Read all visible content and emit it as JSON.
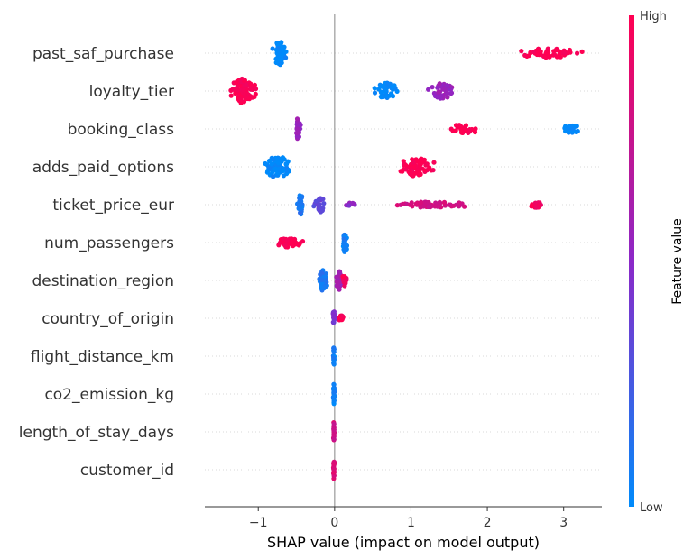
{
  "chart_data": {
    "type": "scatter",
    "subtype": "shap-beeswarm",
    "xlabel": "SHAP value (impact on model output)",
    "xlim": [
      -1.7,
      3.5
    ],
    "x_ticks": [
      -1,
      0,
      1,
      2,
      3
    ],
    "x_tick_labels": [
      "−1",
      "0",
      "1",
      "2",
      "3"
    ],
    "features": [
      "past_saf_purchase",
      "loyalty_tier",
      "booking_class",
      "adds_paid_options",
      "ticket_price_eur",
      "num_passengers",
      "destination_region",
      "country_of_origin",
      "flight_distance_km",
      "co2_emission_kg",
      "length_of_stay_days",
      "customer_id"
    ],
    "clusters": [
      {
        "feature": "past_saf_purchase",
        "center": -0.72,
        "spread": 0.12,
        "height": 0.75,
        "count": 70,
        "color": 0.0
      },
      {
        "feature": "past_saf_purchase",
        "center": 2.8,
        "spread": 0.55,
        "height": 0.3,
        "count": 55,
        "color": 1.0
      },
      {
        "feature": "loyalty_tier",
        "center": -1.2,
        "spread": 0.22,
        "height": 0.8,
        "count": 90,
        "color": 1.0
      },
      {
        "feature": "loyalty_tier",
        "center": 0.68,
        "spread": 0.18,
        "height": 0.55,
        "count": 45,
        "color": 0.0
      },
      {
        "feature": "loyalty_tier",
        "center": 1.4,
        "spread": 0.2,
        "height": 0.5,
        "count": 45,
        "color": 0.55
      },
      {
        "feature": "booking_class",
        "center": -0.48,
        "spread": 0.04,
        "height": 0.7,
        "count": 35,
        "color": 0.55
      },
      {
        "feature": "booking_class",
        "center": 1.7,
        "spread": 0.28,
        "height": 0.3,
        "count": 30,
        "color": 1.0
      },
      {
        "feature": "booking_class",
        "center": 3.1,
        "spread": 0.18,
        "height": 0.25,
        "count": 25,
        "color": 0.0
      },
      {
        "feature": "adds_paid_options",
        "center": -0.75,
        "spread": 0.22,
        "height": 0.75,
        "count": 75,
        "color": 0.0
      },
      {
        "feature": "adds_paid_options",
        "center": 1.05,
        "spread": 0.3,
        "height": 0.6,
        "count": 75,
        "color": 1.0
      },
      {
        "feature": "ticket_price_eur",
        "center": -0.45,
        "spread": 0.05,
        "height": 0.7,
        "count": 30,
        "color": 0.1
      },
      {
        "feature": "ticket_price_eur",
        "center": -0.2,
        "spread": 0.1,
        "height": 0.5,
        "count": 25,
        "color": 0.35
      },
      {
        "feature": "ticket_price_eur",
        "center": 0.2,
        "spread": 0.15,
        "height": 0.12,
        "count": 8,
        "color": 0.5
      },
      {
        "feature": "ticket_price_eur",
        "center": 1.3,
        "spread": 0.7,
        "height": 0.2,
        "count": 60,
        "color": 0.8
      },
      {
        "feature": "ticket_price_eur",
        "center": 2.65,
        "spread": 0.12,
        "height": 0.2,
        "count": 18,
        "color": 0.95
      },
      {
        "feature": "num_passengers",
        "center": -0.6,
        "spread": 0.22,
        "height": 0.3,
        "count": 45,
        "color": 1.0
      },
      {
        "feature": "num_passengers",
        "center": 0.14,
        "spread": 0.04,
        "height": 0.7,
        "count": 45,
        "color": 0.05
      },
      {
        "feature": "destination_region",
        "center": -0.15,
        "spread": 0.06,
        "height": 0.7,
        "count": 45,
        "color": 0.1
      },
      {
        "feature": "destination_region",
        "center": 0.06,
        "spread": 0.05,
        "height": 0.6,
        "count": 35,
        "color": 0.6
      },
      {
        "feature": "destination_region",
        "center": 0.13,
        "spread": 0.04,
        "height": 0.4,
        "count": 15,
        "color": 0.95
      },
      {
        "feature": "country_of_origin",
        "center": -0.01,
        "spread": 0.02,
        "height": 0.5,
        "count": 20,
        "color": 0.45
      },
      {
        "feature": "country_of_origin",
        "center": 0.08,
        "spread": 0.05,
        "height": 0.2,
        "count": 14,
        "color": 1.0
      },
      {
        "feature": "flight_distance_km",
        "center": -0.01,
        "spread": 0.01,
        "height": 0.65,
        "count": 25,
        "color": 0.05
      },
      {
        "feature": "co2_emission_kg",
        "center": -0.01,
        "spread": 0.01,
        "height": 0.65,
        "count": 25,
        "color": 0.05
      },
      {
        "feature": "length_of_stay_days",
        "center": -0.01,
        "spread": 0.01,
        "height": 0.65,
        "count": 25,
        "color": 0.8
      },
      {
        "feature": "customer_id",
        "center": -0.01,
        "spread": 0.01,
        "height": 0.65,
        "count": 25,
        "color": 0.85
      }
    ],
    "colorbar": {
      "label": "Feature value",
      "high_label": "High",
      "low_label": "Low",
      "low_color": "#008bfb",
      "high_color": "#ff0052",
      "mid_color": "#8c28c8"
    },
    "grid": false
  }
}
